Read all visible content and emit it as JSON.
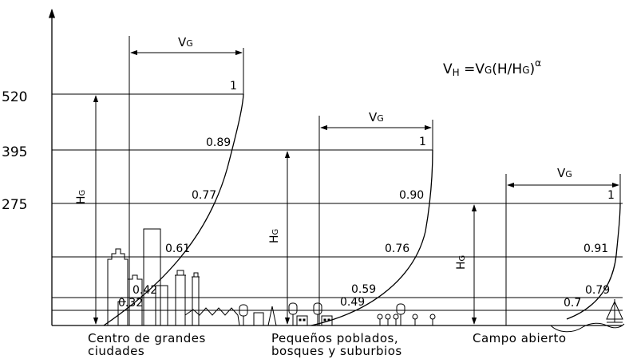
{
  "formula": {
    "vh": "V",
    "vh_sub": "H",
    "rest": " =V",
    "vg_sub": "G",
    "paren_open": "(H/H",
    "hg_sub": "G",
    "paren_close": ")",
    "exponent": "α"
  },
  "y_ticks": [
    "520",
    "395",
    "275"
  ],
  "vg_label": "VG",
  "hg_label": "HG",
  "city": {
    "ratios": [
      "1",
      "0.89",
      "0.77",
      "0.61",
      "0.42",
      "0.32"
    ],
    "caption_line1": "Centro de grandes",
    "caption_line2": "ciudades"
  },
  "suburb": {
    "ratios": [
      "1",
      "0.90",
      "0.76",
      "0.59",
      "0.49"
    ],
    "caption_line1": "Pequeños poblados,",
    "caption_line2": "bosques y suburbios"
  },
  "open": {
    "ratios": [
      "1",
      "0.91",
      "0.79",
      "0.7"
    ],
    "caption_line1": "Campo abierto"
  }
}
